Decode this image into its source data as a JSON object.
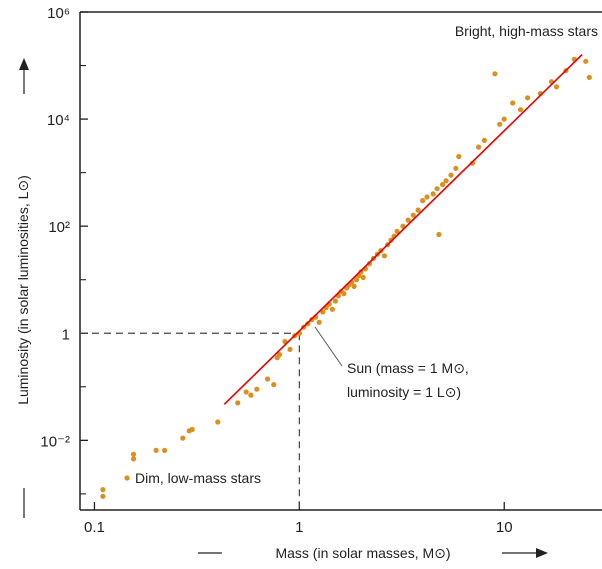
{
  "chart_data": {
    "type": "scatter",
    "title": "",
    "xlabel": "Mass (in solar masses, M⊙)",
    "ylabel": "Luminosity (in solar luminosities, L⊙)",
    "x_scale": "log",
    "y_scale": "log",
    "xlim": [
      0.085,
      30
    ],
    "ylim": [
      0.0005,
      1000000
    ],
    "x_ticks": [
      {
        "value": 0.1,
        "label": "0.1"
      },
      {
        "value": 1,
        "label": "1"
      },
      {
        "value": 10,
        "label": "10"
      }
    ],
    "y_ticks": [
      {
        "value": 0.01,
        "label": "10⁻²"
      },
      {
        "value": 1,
        "label": "1"
      },
      {
        "value": 100,
        "label": "10²"
      },
      {
        "value": 10000,
        "label": "10⁴"
      },
      {
        "value": 1000000,
        "label": "10⁶"
      }
    ],
    "y_minor_ticks": [
      0.001,
      0.1,
      10,
      1000,
      100000
    ],
    "grid": false,
    "colors": {
      "points": "#d9901f",
      "fit_line": "#e60000",
      "axes": "#222222",
      "guides": "#444444"
    },
    "points": [
      [
        0.11,
        0.0012
      ],
      [
        0.11,
        0.0009
      ],
      [
        0.155,
        0.0045
      ],
      [
        0.155,
        0.0055
      ],
      [
        0.2,
        0.0065
      ],
      [
        0.22,
        0.0065
      ],
      [
        0.27,
        0.011
      ],
      [
        0.29,
        0.015
      ],
      [
        0.3,
        0.016
      ],
      [
        0.4,
        0.022
      ],
      [
        0.5,
        0.05
      ],
      [
        0.55,
        0.08
      ],
      [
        0.58,
        0.07
      ],
      [
        0.62,
        0.09
      ],
      [
        0.7,
        0.14
      ],
      [
        0.75,
        0.11
      ],
      [
        0.78,
        0.35
      ],
      [
        0.8,
        0.4
      ],
      [
        0.85,
        0.7
      ],
      [
        0.9,
        0.5
      ],
      [
        0.95,
        0.9
      ],
      [
        1.0,
        1.0
      ],
      [
        1.05,
        1.3
      ],
      [
        1.1,
        1.5
      ],
      [
        1.15,
        1.8
      ],
      [
        1.2,
        2.0
      ],
      [
        1.25,
        1.6
      ],
      [
        1.3,
        2.5
      ],
      [
        1.35,
        3.0
      ],
      [
        1.4,
        3.5
      ],
      [
        1.45,
        2.8
      ],
      [
        1.5,
        4.0
      ],
      [
        1.55,
        5.0
      ],
      [
        1.6,
        6.0
      ],
      [
        1.65,
        5.5
      ],
      [
        1.7,
        7.0
      ],
      [
        1.75,
        8.0
      ],
      [
        1.8,
        9.0
      ],
      [
        1.85,
        7.5
      ],
      [
        1.9,
        10
      ],
      [
        1.95,
        12
      ],
      [
        2.0,
        14
      ],
      [
        2.05,
        11
      ],
      [
        2.1,
        16
      ],
      [
        2.2,
        20
      ],
      [
        2.3,
        25
      ],
      [
        2.4,
        30
      ],
      [
        2.5,
        35
      ],
      [
        2.6,
        28
      ],
      [
        2.7,
        45
      ],
      [
        2.8,
        55
      ],
      [
        2.9,
        65
      ],
      [
        3.0,
        80
      ],
      [
        3.2,
        100
      ],
      [
        3.4,
        130
      ],
      [
        3.6,
        160
      ],
      [
        3.8,
        200
      ],
      [
        4.0,
        300
      ],
      [
        4.2,
        350
      ],
      [
        4.5,
        400
      ],
      [
        4.7,
        500
      ],
      [
        5.0,
        600
      ],
      [
        5.2,
        700
      ],
      [
        5.5,
        900
      ],
      [
        5.8,
        1200
      ],
      [
        4.8,
        70
      ],
      [
        6.0,
        2000
      ],
      [
        7.0,
        1500
      ],
      [
        7.5,
        3000
      ],
      [
        8.0,
        4000
      ],
      [
        9.0,
        70000
      ],
      [
        9.5,
        8000
      ],
      [
        10,
        10000
      ],
      [
        11,
        20000
      ],
      [
        12,
        15000
      ],
      [
        13,
        25000
      ],
      [
        15,
        30000
      ],
      [
        17,
        50000
      ],
      [
        18,
        40000
      ],
      [
        20,
        80000
      ],
      [
        22,
        130000
      ],
      [
        25,
        120000
      ],
      [
        26,
        60000
      ]
    ],
    "fit_line": {
      "x": [
        0.43,
        24
      ],
      "y": [
        0.047,
        160000
      ]
    },
    "sun": {
      "mass": 1,
      "luminosity": 1
    },
    "annotations": {
      "top": "Bright, high-mass stars",
      "bottom": "Dim, low-mass stars",
      "sun_line1": "Sun (mass = 1 M⊙,",
      "sun_line2": "luminosity = 1 L⊙)"
    }
  }
}
